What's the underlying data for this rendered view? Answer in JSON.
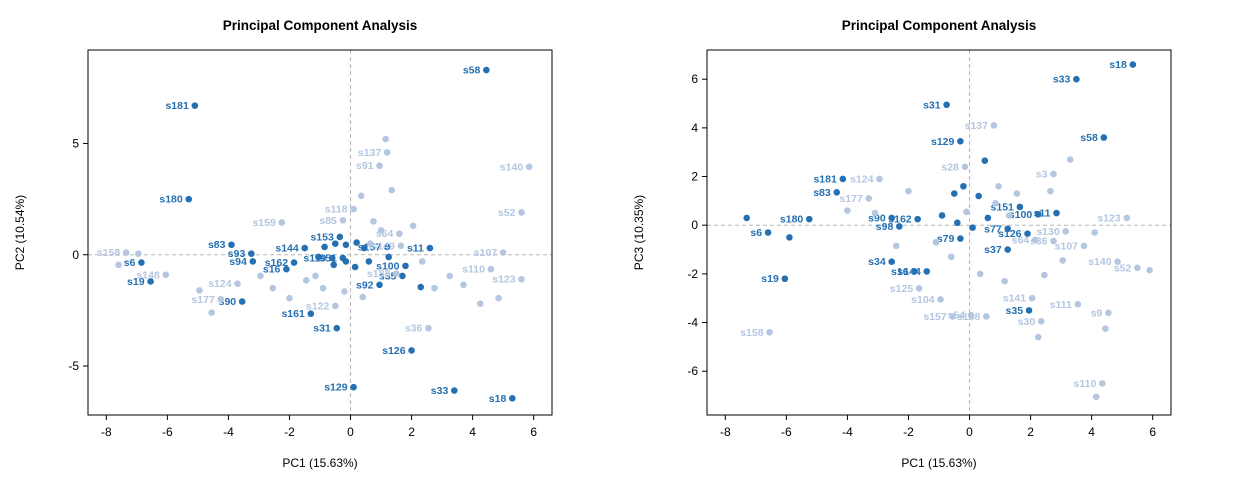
{
  "colors": {
    "dark": "#2470b3",
    "light": "#b4c6e0",
    "ref_line": "#b5b5b5",
    "axis": "#000000"
  },
  "chart_data": [
    {
      "type": "scatter",
      "title": "Principal Component Analysis",
      "xlabel": "PC1 (15.63%)",
      "ylabel": "PC2 (10.54%)",
      "xlim": [
        -8.6,
        6.6
      ],
      "ylim": [
        -7.2,
        9.2
      ],
      "xticks": [
        -8,
        -6,
        -4,
        -2,
        0,
        2,
        4,
        6
      ],
      "yticks": [
        -5,
        0,
        5
      ],
      "grid": false,
      "ref_lines": {
        "x": 0,
        "y": 0
      },
      "points": [
        {
          "label": "s58",
          "x": 4.45,
          "y": 8.3,
          "shade": "dark"
        },
        {
          "label": "s181",
          "x": -5.1,
          "y": 6.7,
          "shade": "dark"
        },
        {
          "label": "s180",
          "x": -5.3,
          "y": 2.5,
          "shade": "dark"
        },
        {
          "label": "s83",
          "x": -3.9,
          "y": 0.45,
          "shade": "dark"
        },
        {
          "label": "s93",
          "x": -3.25,
          "y": 0.05,
          "shade": "dark"
        },
        {
          "label": "s94",
          "x": -3.2,
          "y": -0.3,
          "shade": "dark"
        },
        {
          "label": "s6",
          "x": -6.85,
          "y": -0.35,
          "shade": "dark"
        },
        {
          "label": "s19",
          "x": -6.55,
          "y": -1.2,
          "shade": "dark"
        },
        {
          "label": "s144",
          "x": -1.5,
          "y": 0.3,
          "shade": "dark"
        },
        {
          "label": "s162",
          "x": -1.85,
          "y": -0.35,
          "shade": "dark"
        },
        {
          "label": "s16",
          "x": -2.1,
          "y": -0.65,
          "shade": "dark"
        },
        {
          "label": "s153",
          "x": -0.35,
          "y": 0.8,
          "shade": "dark"
        },
        {
          "label": "s119",
          "x": -0.6,
          "y": -0.15,
          "shade": "dark"
        },
        {
          "label": "s51",
          "x": -0.25,
          "y": -0.15,
          "shade": "dark"
        },
        {
          "label": "s157",
          "x": 1.2,
          "y": 0.35,
          "shade": "dark"
        },
        {
          "label": "s11",
          "x": 2.6,
          "y": 0.3,
          "shade": "dark"
        },
        {
          "label": "s100",
          "x": 1.8,
          "y": -0.5,
          "shade": "dark"
        },
        {
          "label": "s35",
          "x": 1.7,
          "y": -0.95,
          "shade": "dark"
        },
        {
          "label": "s92",
          "x": 0.95,
          "y": -1.35,
          "shade": "dark"
        },
        {
          "label": "s90",
          "x": -3.55,
          "y": -2.1,
          "shade": "dark"
        },
        {
          "label": "s161",
          "x": -1.3,
          "y": -2.65,
          "shade": "dark"
        },
        {
          "label": "s31",
          "x": -0.45,
          "y": -3.3,
          "shade": "dark"
        },
        {
          "label": "s126",
          "x": 2.0,
          "y": -4.3,
          "shade": "dark"
        },
        {
          "label": "s129",
          "x": 0.1,
          "y": -5.95,
          "shade": "dark"
        },
        {
          "label": "s33",
          "x": 3.4,
          "y": -6.1,
          "shade": "dark"
        },
        {
          "label": "s18",
          "x": 5.3,
          "y": -6.45,
          "shade": "dark"
        },
        {
          "label": "s137",
          "x": 1.2,
          "y": 4.6,
          "shade": "light"
        },
        {
          "label": "s91",
          "x": 0.95,
          "y": 4.0,
          "shade": "light"
        },
        {
          "label": "s140",
          "x": 5.85,
          "y": 3.95,
          "shade": "light"
        },
        {
          "label": "s52",
          "x": 5.6,
          "y": 1.9,
          "shade": "light"
        },
        {
          "label": "s118",
          "x": 0.1,
          "y": 2.05,
          "shade": "light"
        },
        {
          "label": "s85",
          "x": -0.25,
          "y": 1.55,
          "shade": "light"
        },
        {
          "label": "s159",
          "x": -2.25,
          "y": 1.45,
          "shade": "light"
        },
        {
          "label": "s64",
          "x": 1.6,
          "y": 0.95,
          "shade": "light"
        },
        {
          "label": "s149",
          "x": 1.65,
          "y": 0.4,
          "shade": "light"
        },
        {
          "label": "s158",
          "x": -7.35,
          "y": 0.1,
          "shade": "light"
        },
        {
          "label": "s148",
          "x": -6.05,
          "y": -0.9,
          "shade": "light"
        },
        {
          "label": "s107",
          "x": 5.0,
          "y": 0.1,
          "shade": "light"
        },
        {
          "label": "s110",
          "x": 4.6,
          "y": -0.65,
          "shade": "light"
        },
        {
          "label": "s123",
          "x": 5.6,
          "y": -1.1,
          "shade": "light"
        },
        {
          "label": "s124",
          "x": -3.7,
          "y": -1.3,
          "shade": "light"
        },
        {
          "label": "s188",
          "x": 1.5,
          "y": -0.85,
          "shade": "light"
        },
        {
          "label": "s177",
          "x": -4.25,
          "y": -2.0,
          "shade": "light"
        },
        {
          "label": "s122",
          "x": -0.5,
          "y": -2.3,
          "shade": "light"
        },
        {
          "label": "s36",
          "x": 2.55,
          "y": -3.3,
          "shade": "light"
        },
        {
          "label": "",
          "x": -0.85,
          "y": 0.35,
          "shade": "dark"
        },
        {
          "label": "",
          "x": -0.5,
          "y": 0.5,
          "shade": "dark"
        },
        {
          "label": "",
          "x": -0.15,
          "y": 0.45,
          "shade": "dark"
        },
        {
          "label": "",
          "x": 0.2,
          "y": 0.55,
          "shade": "dark"
        },
        {
          "label": "",
          "x": 0.45,
          "y": 0.3,
          "shade": "dark"
        },
        {
          "label": "",
          "x": -0.55,
          "y": -0.45,
          "shade": "dark"
        },
        {
          "label": "",
          "x": -0.15,
          "y": -0.3,
          "shade": "dark"
        },
        {
          "label": "",
          "x": 0.15,
          "y": -0.55,
          "shade": "dark"
        },
        {
          "label": "",
          "x": 0.6,
          "y": -0.3,
          "shade": "dark"
        },
        {
          "label": "",
          "x": -1.05,
          "y": -0.1,
          "shade": "dark"
        },
        {
          "label": "",
          "x": 1.25,
          "y": -0.1,
          "shade": "dark"
        },
        {
          "label": "",
          "x": 2.3,
          "y": -1.45,
          "shade": "dark"
        },
        {
          "label": "",
          "x": -7.6,
          "y": -0.45,
          "shade": "light"
        },
        {
          "label": "",
          "x": -6.95,
          "y": 0.05,
          "shade": "light"
        },
        {
          "label": "",
          "x": -4.95,
          "y": -1.6,
          "shade": "light"
        },
        {
          "label": "",
          "x": -4.55,
          "y": -2.6,
          "shade": "light"
        },
        {
          "label": "",
          "x": -2.95,
          "y": -0.95,
          "shade": "light"
        },
        {
          "label": "",
          "x": -2.55,
          "y": -1.5,
          "shade": "light"
        },
        {
          "label": "",
          "x": -2.0,
          "y": -1.95,
          "shade": "light"
        },
        {
          "label": "",
          "x": -1.45,
          "y": -1.15,
          "shade": "light"
        },
        {
          "label": "",
          "x": -0.9,
          "y": -1.5,
          "shade": "light"
        },
        {
          "label": "",
          "x": -0.2,
          "y": -1.65,
          "shade": "light"
        },
        {
          "label": "",
          "x": 0.4,
          "y": -1.9,
          "shade": "light"
        },
        {
          "label": "",
          "x": 1.15,
          "y": 5.2,
          "shade": "light"
        },
        {
          "label": "",
          "x": 0.35,
          "y": 2.65,
          "shade": "light"
        },
        {
          "label": "",
          "x": 0.75,
          "y": 1.5,
          "shade": "light"
        },
        {
          "label": "",
          "x": 1.35,
          "y": 2.9,
          "shade": "light"
        },
        {
          "label": "",
          "x": 2.05,
          "y": 1.3,
          "shade": "light"
        },
        {
          "label": "",
          "x": 2.35,
          "y": -0.3,
          "shade": "light"
        },
        {
          "label": "",
          "x": 2.75,
          "y": -1.5,
          "shade": "light"
        },
        {
          "label": "",
          "x": 3.25,
          "y": -0.95,
          "shade": "light"
        },
        {
          "label": "",
          "x": 3.7,
          "y": -1.35,
          "shade": "light"
        },
        {
          "label": "",
          "x": 4.25,
          "y": -2.2,
          "shade": "light"
        },
        {
          "label": "",
          "x": 4.85,
          "y": -1.95,
          "shade": "light"
        },
        {
          "label": "",
          "x": -1.15,
          "y": -0.95,
          "shade": "light"
        },
        {
          "label": "",
          "x": 0.65,
          "y": 0.5,
          "shade": "light"
        },
        {
          "label": "",
          "x": 1.0,
          "y": 1.1,
          "shade": "light"
        }
      ]
    },
    {
      "type": "scatter",
      "title": "Principal Component Analysis",
      "xlabel": "PC1 (15.63%)",
      "ylabel": "PC3 (10.35%)",
      "xlim": [
        -8.6,
        6.6
      ],
      "ylim": [
        -7.8,
        7.2
      ],
      "xticks": [
        -8,
        -6,
        -4,
        -2,
        0,
        2,
        4,
        6
      ],
      "yticks": [
        -6,
        -4,
        -2,
        0,
        2,
        4,
        6
      ],
      "grid": false,
      "ref_lines": {
        "x": 0,
        "y": 0
      },
      "points": [
        {
          "label": "s18",
          "x": 5.35,
          "y": 6.6,
          "shade": "dark"
        },
        {
          "label": "s33",
          "x": 3.5,
          "y": 6.0,
          "shade": "dark"
        },
        {
          "label": "s31",
          "x": -0.75,
          "y": 4.95,
          "shade": "dark"
        },
        {
          "label": "s129",
          "x": -0.3,
          "y": 3.45,
          "shade": "dark"
        },
        {
          "label": "s58",
          "x": 4.4,
          "y": 3.6,
          "shade": "dark"
        },
        {
          "label": "s181",
          "x": -4.15,
          "y": 1.9,
          "shade": "dark"
        },
        {
          "label": "s83",
          "x": -4.35,
          "y": 1.35,
          "shade": "dark"
        },
        {
          "label": "s151",
          "x": 1.65,
          "y": 0.75,
          "shade": "dark"
        },
        {
          "label": "s100",
          "x": 2.25,
          "y": 0.45,
          "shade": "dark"
        },
        {
          "label": "s11",
          "x": 2.85,
          "y": 0.5,
          "shade": "dark"
        },
        {
          "label": "s180",
          "x": -5.25,
          "y": 0.25,
          "shade": "dark"
        },
        {
          "label": "s90",
          "x": -2.55,
          "y": 0.3,
          "shade": "dark"
        },
        {
          "label": "s98",
          "x": -2.3,
          "y": -0.05,
          "shade": "dark"
        },
        {
          "label": "s162",
          "x": -1.7,
          "y": 0.25,
          "shade": "dark"
        },
        {
          "label": "s6",
          "x": -6.6,
          "y": -0.3,
          "shade": "dark"
        },
        {
          "label": "s77",
          "x": 1.25,
          "y": -0.15,
          "shade": "dark"
        },
        {
          "label": "s126",
          "x": 1.9,
          "y": -0.35,
          "shade": "dark"
        },
        {
          "label": "s79",
          "x": -0.3,
          "y": -0.55,
          "shade": "dark"
        },
        {
          "label": "s37",
          "x": 1.25,
          "y": -1.0,
          "shade": "dark"
        },
        {
          "label": "s19",
          "x": -6.05,
          "y": -2.2,
          "shade": "dark"
        },
        {
          "label": "s34",
          "x": -2.55,
          "y": -1.5,
          "shade": "dark"
        },
        {
          "label": "s16",
          "x": -1.8,
          "y": -1.9,
          "shade": "dark"
        },
        {
          "label": "s144",
          "x": -1.4,
          "y": -1.9,
          "shade": "dark"
        },
        {
          "label": "s35",
          "x": 1.95,
          "y": -3.5,
          "shade": "dark"
        },
        {
          "label": "s137",
          "x": 0.8,
          "y": 4.1,
          "shade": "light"
        },
        {
          "label": "s28",
          "x": -0.15,
          "y": 2.4,
          "shade": "light"
        },
        {
          "label": "s3",
          "x": 2.75,
          "y": 2.1,
          "shade": "light"
        },
        {
          "label": "s124",
          "x": -2.95,
          "y": 1.9,
          "shade": "light"
        },
        {
          "label": "s177",
          "x": -3.3,
          "y": 1.1,
          "shade": "light"
        },
        {
          "label": "s123",
          "x": 5.15,
          "y": 0.3,
          "shade": "light"
        },
        {
          "label": "s130",
          "x": 3.15,
          "y": -0.25,
          "shade": "light"
        },
        {
          "label": "s107",
          "x": 3.75,
          "y": -0.85,
          "shade": "light"
        },
        {
          "label": "s140",
          "x": 4.85,
          "y": -1.5,
          "shade": "light"
        },
        {
          "label": "s52",
          "x": 5.5,
          "y": -1.75,
          "shade": "light"
        },
        {
          "label": "s125",
          "x": -1.65,
          "y": -2.6,
          "shade": "light"
        },
        {
          "label": "s104",
          "x": -0.95,
          "y": -3.05,
          "shade": "light"
        },
        {
          "label": "s141",
          "x": 2.05,
          "y": -3.0,
          "shade": "light"
        },
        {
          "label": "s111",
          "x": 3.55,
          "y": -3.25,
          "shade": "light"
        },
        {
          "label": "s9",
          "x": 4.55,
          "y": -3.6,
          "shade": "light"
        },
        {
          "label": "s157",
          "x": -0.55,
          "y": -3.75,
          "shade": "light"
        },
        {
          "label": "s54",
          "x": 0.05,
          "y": -3.7,
          "shade": "light"
        },
        {
          "label": "s188",
          "x": 0.55,
          "y": -3.75,
          "shade": "light"
        },
        {
          "label": "s30",
          "x": 2.35,
          "y": -3.95,
          "shade": "light"
        },
        {
          "label": "s158",
          "x": -6.55,
          "y": -4.4,
          "shade": "light"
        },
        {
          "label": "s110",
          "x": 4.35,
          "y": -6.5,
          "shade": "light"
        },
        {
          "label": "s64",
          "x": 2.15,
          "y": -0.6,
          "shade": "light"
        },
        {
          "label": "s36",
          "x": 2.75,
          "y": -0.65,
          "shade": "light"
        },
        {
          "label": "",
          "x": 0.5,
          "y": 2.65,
          "shade": "dark"
        },
        {
          "label": "",
          "x": -0.5,
          "y": 1.3,
          "shade": "dark"
        },
        {
          "label": "",
          "x": -0.2,
          "y": 1.6,
          "shade": "dark"
        },
        {
          "label": "",
          "x": 0.3,
          "y": 1.2,
          "shade": "dark"
        },
        {
          "label": "",
          "x": -0.9,
          "y": 0.4,
          "shade": "dark"
        },
        {
          "label": "",
          "x": -0.4,
          "y": 0.1,
          "shade": "dark"
        },
        {
          "label": "",
          "x": 0.1,
          "y": -0.1,
          "shade": "dark"
        },
        {
          "label": "",
          "x": 0.6,
          "y": 0.3,
          "shade": "dark"
        },
        {
          "label": "",
          "x": -7.3,
          "y": 0.3,
          "shade": "dark"
        },
        {
          "label": "",
          "x": -5.9,
          "y": -0.5,
          "shade": "dark"
        },
        {
          "label": "",
          "x": -4.0,
          "y": 0.6,
          "shade": "light"
        },
        {
          "label": "",
          "x": -3.1,
          "y": 0.5,
          "shade": "light"
        },
        {
          "label": "",
          "x": -2.4,
          "y": -0.85,
          "shade": "light"
        },
        {
          "label": "",
          "x": 0.95,
          "y": 1.6,
          "shade": "light"
        },
        {
          "label": "",
          "x": 1.55,
          "y": 1.3,
          "shade": "light"
        },
        {
          "label": "",
          "x": 2.65,
          "y": 1.4,
          "shade": "light"
        },
        {
          "label": "",
          "x": 3.3,
          "y": 2.7,
          "shade": "light"
        },
        {
          "label": "",
          "x": 4.1,
          "y": -0.3,
          "shade": "light"
        },
        {
          "label": "",
          "x": 3.05,
          "y": -1.45,
          "shade": "light"
        },
        {
          "label": "",
          "x": 2.45,
          "y": -2.05,
          "shade": "light"
        },
        {
          "label": "",
          "x": 1.15,
          "y": -2.3,
          "shade": "light"
        },
        {
          "label": "",
          "x": 0.35,
          "y": -2.0,
          "shade": "light"
        },
        {
          "label": "",
          "x": -0.6,
          "y": -1.3,
          "shade": "light"
        },
        {
          "label": "",
          "x": -1.1,
          "y": -0.7,
          "shade": "light"
        },
        {
          "label": "",
          "x": 4.45,
          "y": -4.25,
          "shade": "light"
        },
        {
          "label": "",
          "x": 2.25,
          "y": -4.6,
          "shade": "light"
        },
        {
          "label": "",
          "x": 0.85,
          "y": 0.9,
          "shade": "light"
        },
        {
          "label": "",
          "x": 1.3,
          "y": 0.4,
          "shade": "light"
        },
        {
          "label": "",
          "x": -2.0,
          "y": 1.4,
          "shade": "light"
        },
        {
          "label": "",
          "x": 5.9,
          "y": -1.85,
          "shade": "light"
        },
        {
          "label": "",
          "x": 4.15,
          "y": -7.05,
          "shade": "light"
        },
        {
          "label": "",
          "x": -0.1,
          "y": 0.55,
          "shade": "light"
        }
      ]
    }
  ]
}
